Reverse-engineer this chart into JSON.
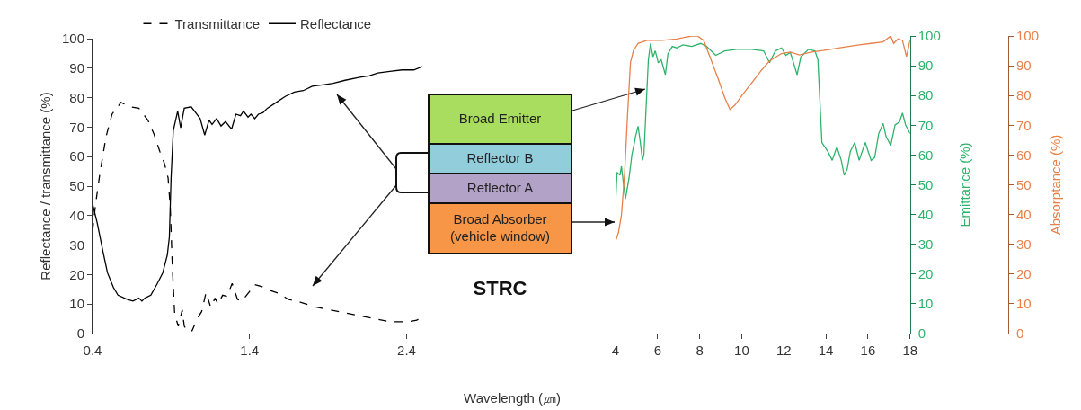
{
  "chart_data": [
    {
      "type": "line",
      "ylabel": "Reflectance / transmittance (%)",
      "xlim": [
        0.4,
        2.5
      ],
      "xticks": [
        0.4,
        1.4,
        2.4
      ],
      "ylim": [
        0,
        100
      ],
      "yticks": [
        0,
        10,
        20,
        30,
        40,
        50,
        60,
        70,
        80,
        90,
        100
      ],
      "grid": false,
      "legend": "top",
      "marker": "none",
      "series": [
        {
          "name": "Transmittance",
          "color": "#000000",
          "line_style": "dashed",
          "x": [
            0.4,
            0.419,
            0.448,
            0.486,
            0.524,
            0.581,
            0.638,
            0.695,
            0.752,
            0.79,
            0.828,
            0.857,
            0.881,
            0.895,
            0.908,
            0.923,
            0.946,
            0.971,
            0.984,
            1.009,
            1.034,
            1.066,
            1.095,
            1.123,
            1.152,
            1.18,
            1.199,
            1.228,
            1.256,
            1.289,
            1.323,
            1.351,
            1.39,
            1.433,
            1.475,
            1.532,
            1.589,
            1.646,
            1.723,
            1.818,
            1.913,
            2.008,
            2.103,
            2.198,
            2.293,
            2.408,
            2.465,
            2.5
          ],
          "values": [
            34.7,
            43.7,
            54.8,
            66.8,
            74.4,
            78.4,
            76.9,
            76.4,
            72.4,
            67.8,
            61.8,
            57.8,
            52.8,
            42.7,
            22.6,
            6.5,
            2.5,
            8,
            2.5,
            0.5,
            1,
            5,
            7.5,
            14,
            9,
            12,
            10,
            13,
            12.6,
            17,
            11.6,
            11,
            13.6,
            16.6,
            16,
            14.6,
            13.6,
            11.6,
            10.6,
            9,
            8,
            7,
            6,
            5,
            4,
            4,
            4.5,
            6
          ]
        },
        {
          "name": "Reflectance",
          "color": "#000000",
          "line_style": "solid",
          "x": [
            0.4,
            0.429,
            0.467,
            0.495,
            0.533,
            0.562,
            0.619,
            0.657,
            0.695,
            0.714,
            0.733,
            0.771,
            0.809,
            0.847,
            0.876,
            0.889,
            0.9,
            0.914,
            0.942,
            0.961,
            0.984,
            1.028,
            1.057,
            1.085,
            1.114,
            1.142,
            1.161,
            1.19,
            1.218,
            1.247,
            1.285,
            1.313,
            1.342,
            1.361,
            1.39,
            1.409,
            1.433,
            1.456,
            1.485,
            1.513,
            1.57,
            1.627,
            1.685,
            1.742,
            1.799,
            1.875,
            1.932,
            2.008,
            2.103,
            2.16,
            2.217,
            2.293,
            2.37,
            2.446,
            2.5
          ],
          "values": [
            44,
            37.7,
            27.6,
            20.6,
            15.6,
            13,
            11.6,
            11,
            12,
            11,
            12,
            13,
            16.6,
            20.6,
            26.6,
            32.7,
            52.8,
            68.8,
            75.4,
            69.8,
            76.4,
            76.9,
            74.9,
            72.9,
            67.3,
            72.4,
            70.9,
            72.9,
            70.4,
            71.9,
            69.3,
            74.4,
            73.9,
            75.4,
            73.4,
            74.4,
            72.9,
            74.4,
            74.9,
            76.4,
            78.4,
            80.4,
            81.9,
            82.4,
            83.9,
            84.4,
            84.9,
            85.9,
            86.9,
            87.4,
            88.4,
            88.9,
            89.4,
            89.4,
            90.5
          ]
        }
      ]
    },
    {
      "type": "other",
      "title": "STRC",
      "categories": [
        "Broad Emitter",
        "Reflector B",
        "Reflector A",
        "Broad Absorber\n(vehicle window)"
      ],
      "colors": [
        "#a9dd5f",
        "#92cddc",
        "#b3a2c7",
        "#f79646"
      ],
      "annotations": [
        "Wavelength (㎛)"
      ]
    },
    {
      "type": "line",
      "y2label": "Emittance (%)",
      "y3label": "Absorptance (%)",
      "xlim": [
        4,
        18
      ],
      "xticks": [
        4,
        6,
        8,
        10,
        12,
        14,
        16,
        18
      ],
      "y2lim": [
        0,
        100
      ],
      "y2ticks": [
        0,
        10,
        20,
        30,
        40,
        50,
        60,
        70,
        80,
        90,
        100
      ],
      "y3lim": [
        0,
        100
      ],
      "y3ticks": [
        0,
        10,
        20,
        30,
        40,
        50,
        60,
        70,
        80,
        90,
        100
      ],
      "grid": false,
      "marker": "none",
      "series": [
        {
          "color": "#2eb36b",
          "axis": "y2",
          "x": [
            4,
            4.07,
            4.21,
            4.28,
            4.38,
            4.47,
            4.64,
            4.78,
            4.9,
            4.95,
            5.07,
            5.18,
            5.28,
            5.35,
            5.46,
            5.56,
            5.66,
            5.78,
            5.89,
            6.03,
            6.17,
            6.37,
            6.49,
            6.7,
            6.91,
            7.2,
            7.62,
            8.05,
            8.33,
            8.76,
            9.19,
            9.76,
            10.47,
            11.04,
            11.32,
            11.6,
            11.89,
            12.1,
            12.31,
            12.63,
            12.81,
            13.17,
            13.48,
            13.62,
            13.81,
            14.09,
            14.3,
            14.52,
            14.73,
            14.87,
            15.01,
            15.16,
            15.37,
            15.58,
            15.87,
            16.15,
            16.32,
            16.51,
            16.72,
            16.86,
            17.08,
            17.29,
            17.5,
            17.64,
            17.79,
            18
          ],
          "values": [
            43.3,
            54.2,
            53.2,
            56.2,
            50.2,
            45.3,
            52.2,
            60.2,
            64.2,
            66.2,
            69.7,
            64.2,
            58.2,
            60.2,
            77.1,
            92,
            97.5,
            93,
            95,
            91,
            92,
            87,
            94,
            96.5,
            96,
            97,
            96.5,
            97.5,
            96.5,
            93.5,
            95,
            95.5,
            95.5,
            95,
            91,
            95,
            96,
            93.5,
            94.5,
            87,
            93,
            95.5,
            95,
            92,
            64.2,
            61.2,
            58.2,
            62.7,
            58.2,
            53.2,
            55.2,
            61.2,
            64.2,
            58.2,
            64.2,
            58.2,
            59.2,
            67.2,
            70.6,
            66.2,
            63.2,
            70.1,
            71.1,
            74.1,
            70.1,
            67.2
          ]
        },
        {
          "color": "#e8804a",
          "axis": "y3",
          "x": [
            4,
            4.14,
            4.28,
            4.43,
            4.57,
            4.71,
            4.85,
            5.07,
            5.49,
            6.21,
            6.91,
            7.62,
            7.9,
            8.19,
            8.48,
            8.9,
            9.19,
            9.44,
            9.68,
            10.04,
            10.47,
            10.9,
            11.32,
            11.89,
            12.31,
            12.74,
            13.31,
            13.88,
            14.73,
            15.58,
            16.15,
            16.72,
            17.08,
            17.22,
            17.43,
            17.64,
            17.83,
            18
          ],
          "values": [
            31,
            33.9,
            39.8,
            53.6,
            73.4,
            91.1,
            95.1,
            97.5,
            98.5,
            98.5,
            99,
            100,
            100,
            98.5,
            93.1,
            85.2,
            79.3,
            75.3,
            76.8,
            80.3,
            84.2,
            88.2,
            91.6,
            94.1,
            94.6,
            93.6,
            94.6,
            95.1,
            96.1,
            97,
            97.5,
            98,
            100,
            97.5,
            99,
            98.5,
            93.1,
            98.5
          ]
        }
      ]
    }
  ]
}
